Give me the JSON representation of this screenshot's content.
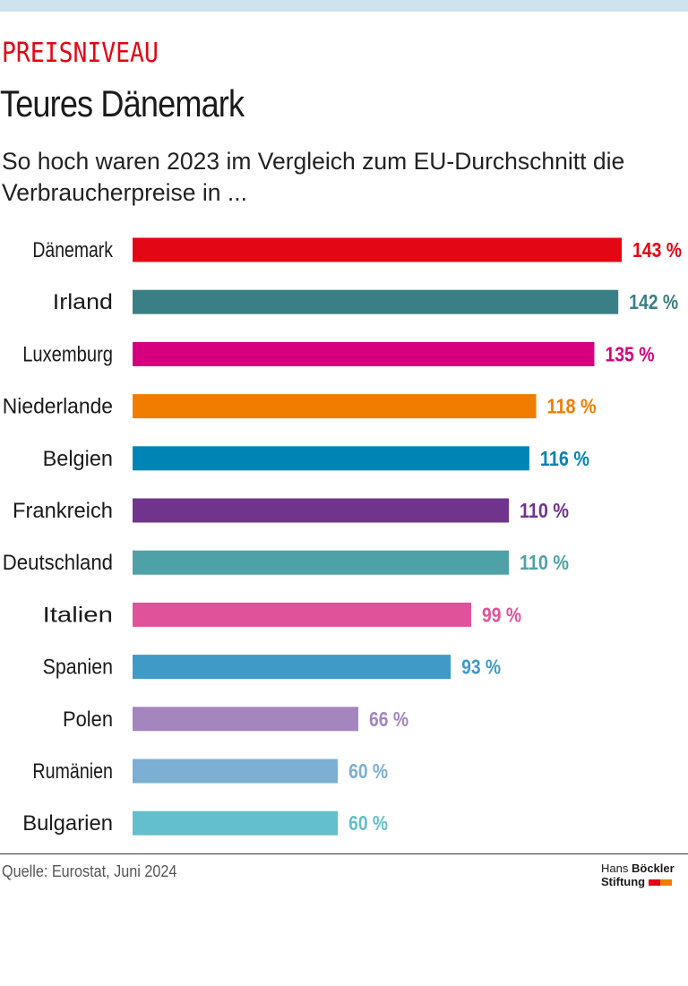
{
  "header": {
    "kicker": "PREISNIVEAU",
    "title": "Teures Dänemark",
    "subtitle": "So hoch waren 2023 im Vergleich zum EU-Durchschnitt die Verbraucherpreise in ..."
  },
  "footer": {
    "source": "Quelle: Eurostat, Juni 2024",
    "logo_line1_light": "Hans",
    "logo_line1_bold": "Böckler",
    "logo_line2": "Stiftung",
    "logo_colors": [
      "#e30613",
      "#f07d00"
    ]
  },
  "chart_data": {
    "type": "bar",
    "orientation": "horizontal",
    "unit": "%",
    "categories": [
      "Dänemark",
      "Irland",
      "Luxemburg",
      "Niederlande",
      "Belgien",
      "Frankreich",
      "Deutschland",
      "Italien",
      "Spanien",
      "Polen",
      "Rumänien",
      "Bulgarien"
    ],
    "values": [
      143,
      142,
      135,
      118,
      116,
      110,
      110,
      99,
      93,
      66,
      60,
      60
    ],
    "labels": [
      "143 %",
      "142 %",
      "135 %",
      "118 %",
      "116 %",
      "110 %",
      "110 %",
      "99 %",
      "93 %",
      "66 %",
      "60 %",
      "60 %"
    ],
    "colors": [
      "#e30613",
      "#3a7f86",
      "#d6007e",
      "#f07d00",
      "#0083b5",
      "#6f348c",
      "#4fa1a8",
      "#e0529a",
      "#3f9ac8",
      "#a585be",
      "#7bafd4",
      "#63bfcb"
    ],
    "xlim": [
      0,
      143
    ],
    "grid": false
  }
}
